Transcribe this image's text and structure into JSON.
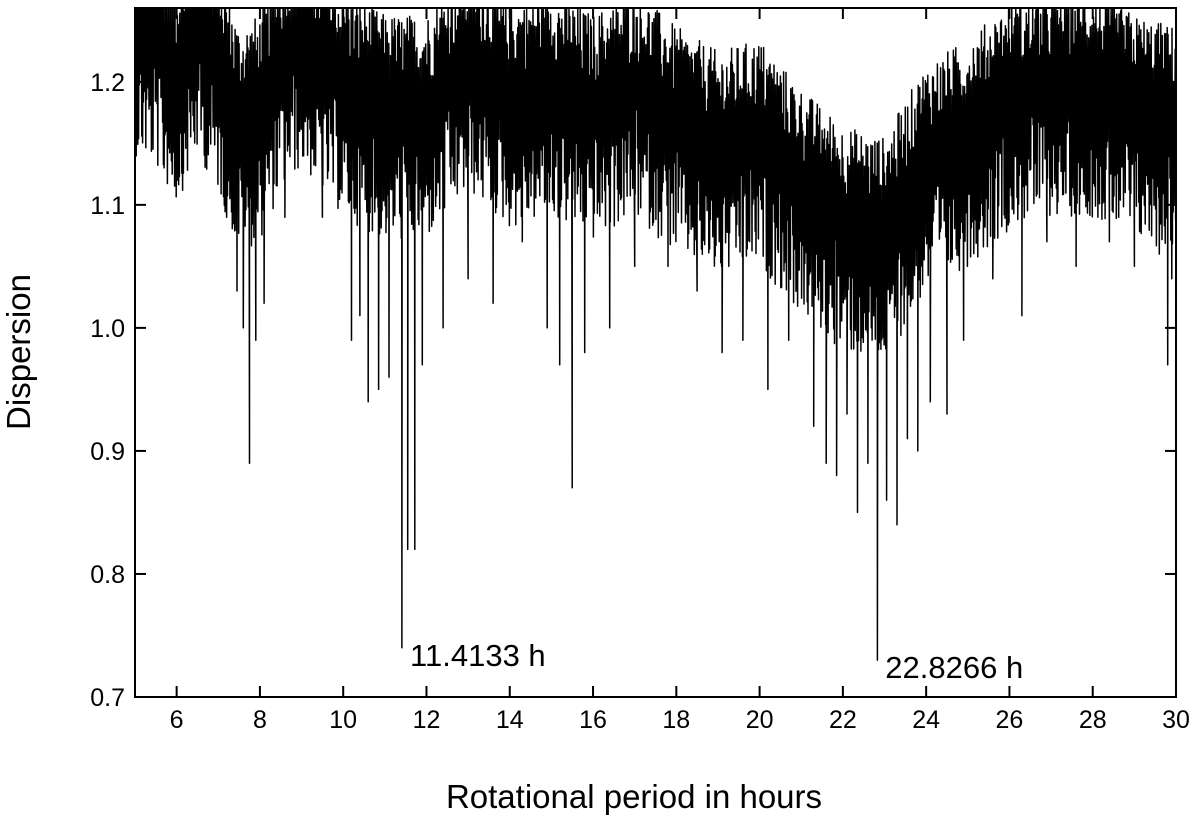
{
  "chart_data": {
    "type": "line",
    "title": "",
    "xlabel": "Rotational period in hours",
    "ylabel": "Dispersion",
    "xlim": [
      5,
      30
    ],
    "ylim": [
      0.7,
      1.26
    ],
    "grid": false,
    "legend": "none",
    "x_ticks": [
      6,
      8,
      10,
      12,
      14,
      16,
      18,
      20,
      22,
      24,
      26,
      28,
      30
    ],
    "x_tick_labels": [
      "6",
      "8",
      "10",
      "12",
      "14",
      "16",
      "18",
      "20",
      "22",
      "24",
      "26",
      "28",
      "30"
    ],
    "y_ticks": [
      0.7,
      0.8,
      0.9,
      1.0,
      1.1,
      1.2
    ],
    "y_tick_labels": [
      "0.7",
      "0.8",
      "0.9",
      "1.0",
      "1.1",
      "1.2"
    ],
    "series": [
      {
        "line_color": "#000000",
        "baseline": [
          [
            5.0,
            1.23
          ],
          [
            5.5,
            1.22
          ],
          [
            6.0,
            1.19
          ],
          [
            6.5,
            1.23
          ],
          [
            7.0,
            1.2
          ],
          [
            7.5,
            1.15
          ],
          [
            8.0,
            1.16
          ],
          [
            8.5,
            1.2
          ],
          [
            9.0,
            1.22
          ],
          [
            10.0,
            1.18
          ],
          [
            11.0,
            1.16
          ],
          [
            12.0,
            1.16
          ],
          [
            13.0,
            1.2
          ],
          [
            14.0,
            1.17
          ],
          [
            15.0,
            1.18
          ],
          [
            16.0,
            1.16
          ],
          [
            17.0,
            1.18
          ],
          [
            18.0,
            1.15
          ],
          [
            19.0,
            1.13
          ],
          [
            20.0,
            1.14
          ],
          [
            21.0,
            1.1
          ],
          [
            22.0,
            1.07
          ],
          [
            23.0,
            1.06
          ],
          [
            24.0,
            1.12
          ],
          [
            25.0,
            1.14
          ],
          [
            26.0,
            1.17
          ],
          [
            27.0,
            1.18
          ],
          [
            28.0,
            1.18
          ],
          [
            29.0,
            1.16
          ],
          [
            30.0,
            1.15
          ]
        ],
        "dips": [
          [
            5.7,
            1.13
          ],
          [
            6.2,
            1.16
          ],
          [
            7.2,
            1.09
          ],
          [
            7.45,
            1.03
          ],
          [
            7.6,
            1.0
          ],
          [
            7.75,
            0.89
          ],
          [
            7.9,
            0.99
          ],
          [
            8.1,
            1.02
          ],
          [
            8.6,
            1.09
          ],
          [
            9.5,
            1.09
          ],
          [
            10.2,
            0.99
          ],
          [
            10.4,
            1.01
          ],
          [
            10.6,
            0.94
          ],
          [
            10.85,
            0.95
          ],
          [
            11.1,
            0.96
          ],
          [
            11.41,
            0.74
          ],
          [
            11.55,
            0.82
          ],
          [
            11.72,
            0.82
          ],
          [
            11.9,
            0.97
          ],
          [
            12.4,
            1.0
          ],
          [
            13.0,
            1.04
          ],
          [
            13.6,
            1.02
          ],
          [
            14.3,
            1.07
          ],
          [
            14.9,
            1.0
          ],
          [
            15.2,
            0.97
          ],
          [
            15.5,
            0.87
          ],
          [
            15.8,
            0.98
          ],
          [
            16.4,
            1.0
          ],
          [
            17.0,
            1.05
          ],
          [
            17.8,
            1.05
          ],
          [
            18.5,
            1.03
          ],
          [
            19.1,
            0.98
          ],
          [
            19.6,
            0.99
          ],
          [
            20.2,
            0.95
          ],
          [
            20.7,
            0.99
          ],
          [
            21.3,
            0.92
          ],
          [
            21.6,
            0.89
          ],
          [
            21.85,
            0.88
          ],
          [
            22.1,
            0.93
          ],
          [
            22.35,
            0.85
          ],
          [
            22.6,
            0.89
          ],
          [
            22.83,
            0.73
          ],
          [
            23.05,
            0.86
          ],
          [
            23.3,
            0.84
          ],
          [
            23.55,
            0.91
          ],
          [
            23.8,
            0.9
          ],
          [
            24.1,
            0.94
          ],
          [
            24.5,
            0.93
          ],
          [
            24.9,
            0.99
          ],
          [
            25.6,
            1.04
          ],
          [
            26.3,
            1.01
          ],
          [
            26.9,
            1.07
          ],
          [
            27.6,
            1.05
          ],
          [
            28.4,
            1.07
          ],
          [
            29.0,
            1.05
          ],
          [
            29.6,
            1.06
          ],
          [
            29.8,
            0.97
          ],
          [
            29.9,
            1.04
          ]
        ]
      }
    ],
    "annotations": [
      {
        "text": "11.4133 h",
        "x": 11.4133,
        "y": 0.74
      },
      {
        "text": "22.8266 h",
        "x": 22.8266,
        "y": 0.73
      }
    ]
  }
}
